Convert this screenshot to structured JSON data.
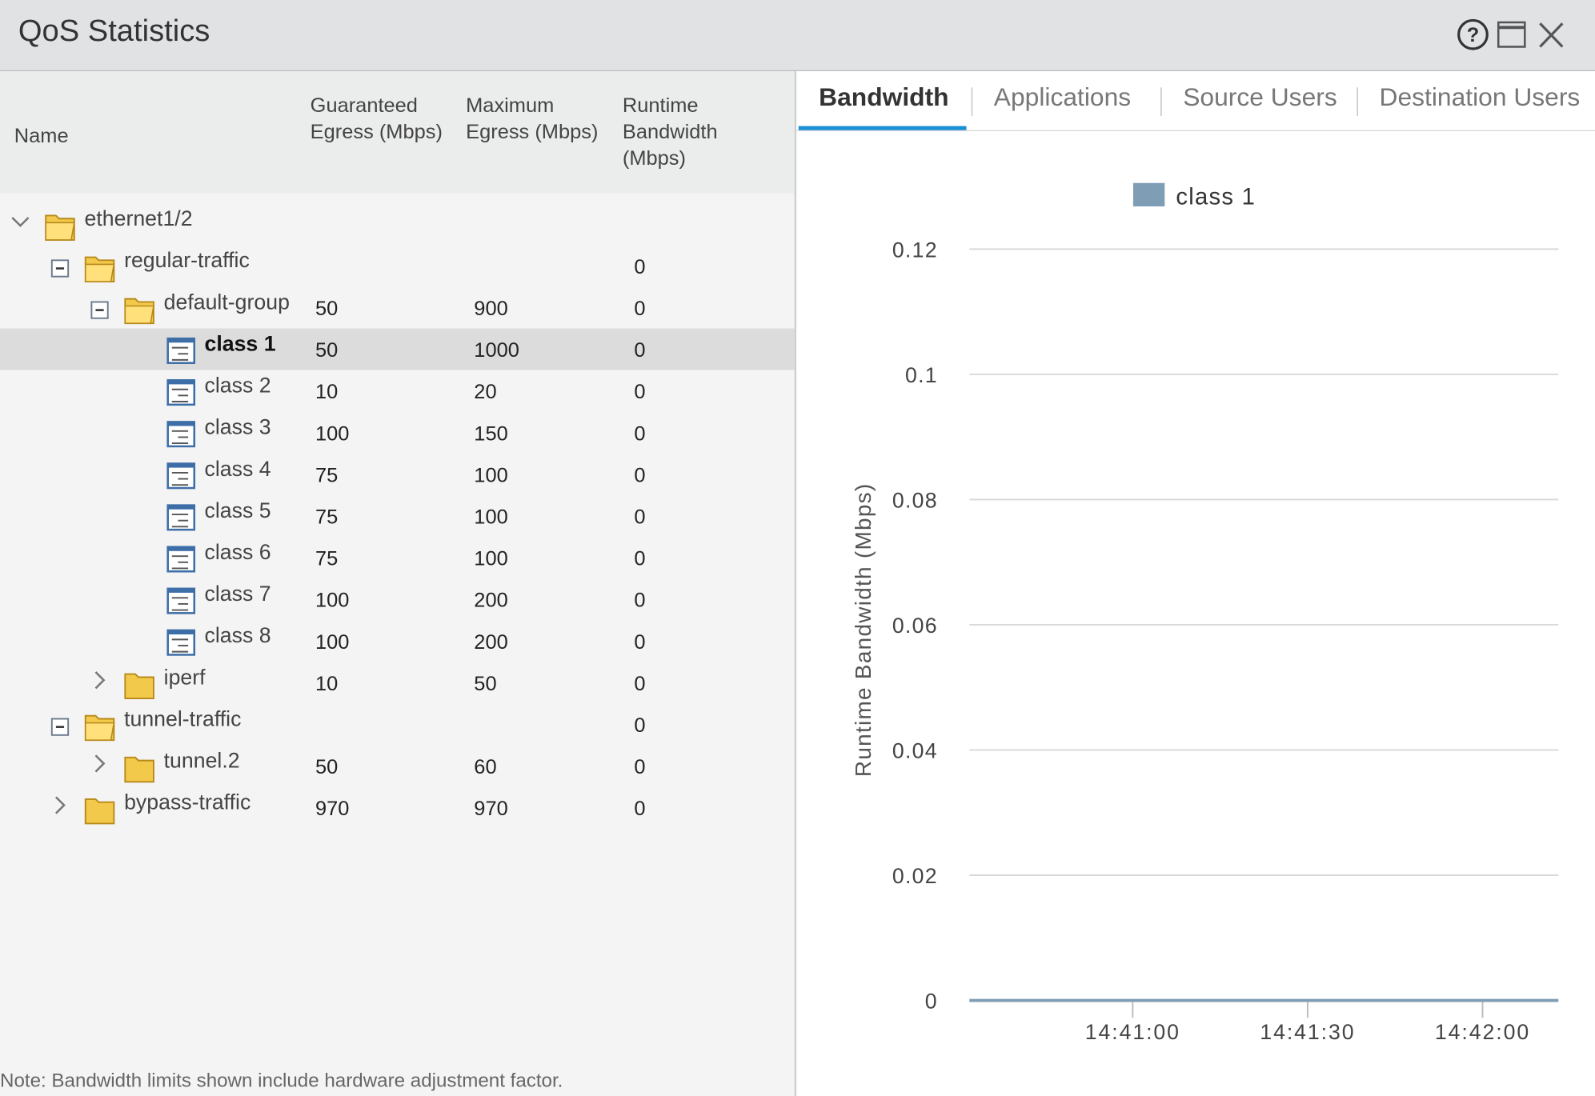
{
  "window": {
    "title": "QoS Statistics"
  },
  "table": {
    "columns": [
      "Name",
      "Guaranteed Egress (Mbps)",
      "Maximum Egress (Mbps)",
      "Runtime Bandwidth (Mbps)"
    ],
    "rows": [
      [
        "ethernet1/2",
        null,
        null,
        null
      ],
      [
        "regular-traffic",
        null,
        null,
        0
      ],
      [
        "default-group",
        50,
        900,
        0
      ],
      [
        "class 1",
        50,
        1000,
        0
      ],
      [
        "class 2",
        10,
        20,
        0
      ],
      [
        "class 3",
        100,
        150,
        0
      ],
      [
        "class 4",
        75,
        100,
        0
      ],
      [
        "class 5",
        75,
        100,
        0
      ],
      [
        "class 6",
        75,
        100,
        0
      ],
      [
        "class 7",
        100,
        200,
        0
      ],
      [
        "class 8",
        100,
        200,
        0
      ],
      [
        "iperf",
        10,
        50,
        0
      ],
      [
        "tunnel-traffic",
        null,
        null,
        0
      ],
      [
        "tunnel.2",
        50,
        60,
        0
      ],
      [
        "bypass-traffic",
        970,
        970,
        0
      ]
    ]
  },
  "note": "Note: Bandwidth limits shown include hardware adjustment factor.",
  "tabs": [
    "Bandwidth",
    "Applications",
    "Source Users",
    "Destination Users"
  ],
  "chart_data": {
    "type": "line",
    "y_label": "Runtime Bandwidth (Mbps)",
    "x": [
      "14:40:32",
      "14:42:13"
    ],
    "series": [
      {
        "name": "class 1",
        "color": "#7f9db5",
        "values": [
          0,
          0
        ]
      }
    ],
    "xlim": [
      "14:40:32",
      "14:42:13"
    ],
    "xticks": [
      "14:41:00",
      "14:41:30",
      "14:42:00"
    ],
    "ylim": [
      0,
      0.12
    ],
    "yticks": [
      0,
      0.02,
      0.04,
      0.06,
      0.08,
      0.1,
      0.12
    ],
    "grid": true,
    "legend": "top"
  }
}
